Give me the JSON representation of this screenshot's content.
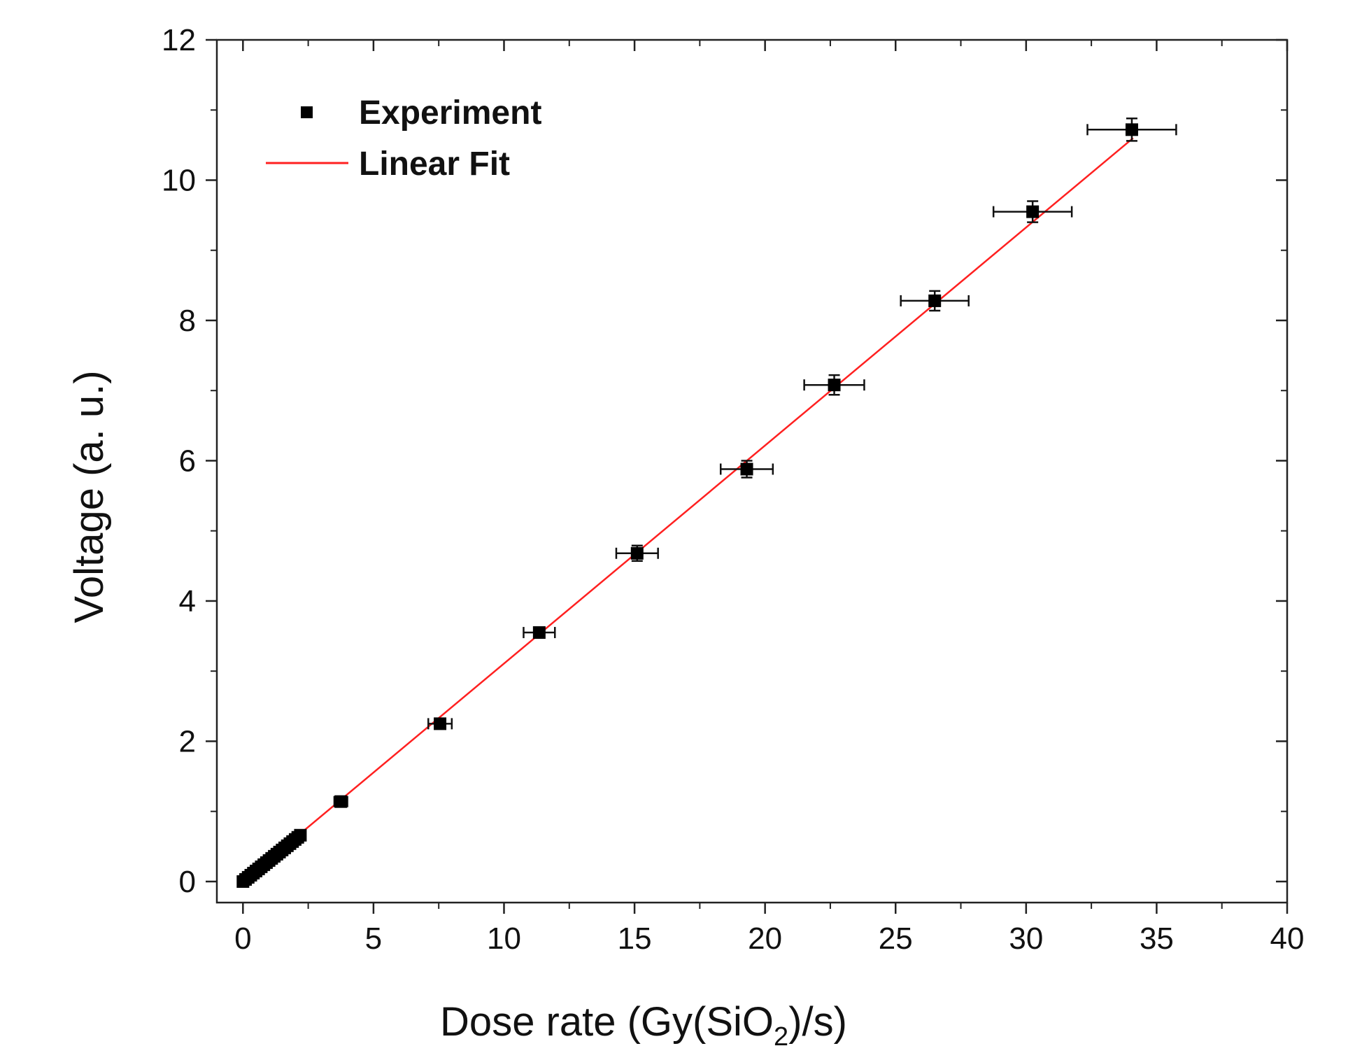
{
  "chart_data": {
    "type": "scatter",
    "title": "",
    "xlabel_main": "Dose rate (Gy(SiO",
    "xlabel_sub": "2",
    "xlabel_end": ")/s)",
    "ylabel": "Voltage (a. u.)",
    "xlim": [
      -1,
      40
    ],
    "ylim": [
      -0.3,
      12
    ],
    "xticks": [
      0,
      5,
      10,
      15,
      20,
      25,
      30,
      35,
      40
    ],
    "yticks": [
      0,
      2,
      4,
      6,
      8,
      10,
      12
    ],
    "grid": false,
    "legend_position": "top-left",
    "legend": {
      "experiment": "Experiment",
      "fit": "Linear Fit"
    },
    "colors": {
      "points": "#000000",
      "fit": "#ff2020",
      "axis": "#222222"
    },
    "series": [
      {
        "name": "Experiment",
        "x": [
          0.0,
          0.1,
          0.2,
          0.3,
          0.4,
          0.5,
          0.6,
          0.7,
          0.8,
          0.9,
          1.0,
          1.1,
          1.2,
          1.3,
          1.4,
          1.5,
          1.6,
          1.7,
          1.8,
          1.9,
          2.0,
          2.1,
          2.2,
          3.75,
          7.55,
          11.35,
          15.1,
          19.3,
          22.65,
          26.5,
          30.25,
          34.05
        ],
        "y": [
          0.0,
          0.03,
          0.06,
          0.09,
          0.12,
          0.15,
          0.18,
          0.21,
          0.24,
          0.27,
          0.3,
          0.33,
          0.36,
          0.39,
          0.42,
          0.45,
          0.48,
          0.51,
          0.54,
          0.57,
          0.6,
          0.63,
          0.66,
          1.14,
          2.25,
          3.55,
          4.68,
          5.88,
          7.08,
          8.28,
          9.55,
          10.72
        ],
        "x_err": [
          0,
          0,
          0,
          0,
          0,
          0,
          0,
          0,
          0,
          0,
          0,
          0,
          0,
          0,
          0,
          0,
          0,
          0,
          0,
          0,
          0,
          0,
          0,
          0.25,
          0.45,
          0.6,
          0.8,
          1.0,
          1.15,
          1.3,
          1.5,
          1.7
        ],
        "y_err": [
          0,
          0,
          0,
          0,
          0,
          0,
          0,
          0,
          0,
          0,
          0,
          0,
          0,
          0,
          0,
          0,
          0,
          0,
          0,
          0,
          0,
          0,
          0,
          0.05,
          0.07,
          0.07,
          0.11,
          0.12,
          0.14,
          0.14,
          0.15,
          0.16
        ]
      },
      {
        "name": "Linear Fit",
        "x": [
          0.0,
          34.1
        ],
        "y": [
          0.0,
          10.6
        ]
      }
    ]
  }
}
